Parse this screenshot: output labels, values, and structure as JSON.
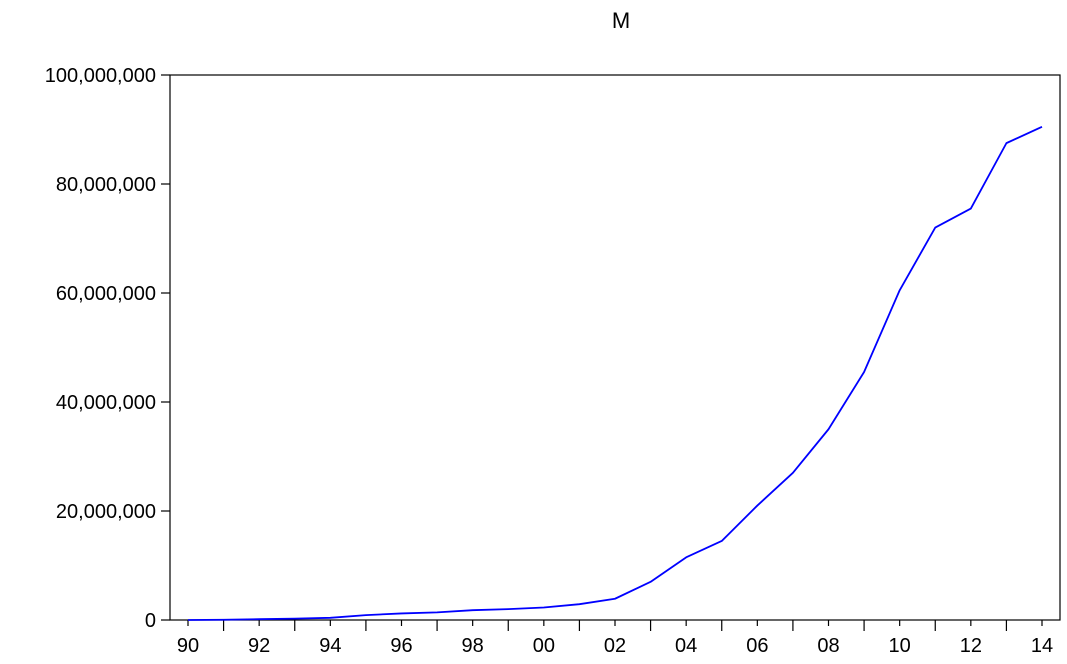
{
  "chart_data": {
    "type": "line",
    "title": "M",
    "xlabel": "",
    "ylabel": "",
    "x_tick_labels": [
      "90",
      "92",
      "94",
      "96",
      "98",
      "00",
      "02",
      "04",
      "06",
      "08",
      "10",
      "12",
      "14"
    ],
    "y_tick_labels": [
      "0",
      "20,000,000",
      "40,000,000",
      "60,000,000",
      "80,000,000",
      "100,000,000"
    ],
    "y_tick_values": [
      0,
      20000000,
      40000000,
      60000000,
      80000000,
      100000000
    ],
    "xlim": [
      1990,
      2014
    ],
    "ylim": [
      0,
      100000000
    ],
    "grid": false,
    "legend": "none",
    "line_color": "#0000ff",
    "series": [
      {
        "x": [
          1990,
          1991,
          1992,
          1993,
          1994,
          1995,
          1996,
          1997,
          1998,
          1999,
          2000,
          2001,
          2002,
          2003,
          2004,
          2005,
          2006,
          2007,
          2008,
          2009,
          2010,
          2011,
          2012,
          2013,
          2014
        ],
        "values": [
          0,
          50000,
          150000,
          250000,
          400000,
          900000,
          1200000,
          1400000,
          1800000,
          2000000,
          2300000,
          2900000,
          3900000,
          7000000,
          11500000,
          14500000,
          21000000,
          27000000,
          35000000,
          45500000,
          60500000,
          72000000,
          75500000,
          87500000,
          90500000
        ]
      }
    ]
  }
}
